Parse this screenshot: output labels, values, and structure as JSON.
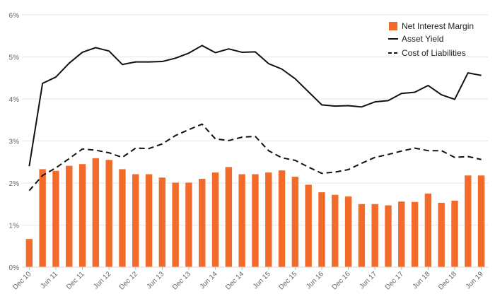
{
  "chart_data": {
    "type": "bar",
    "title": "",
    "xlabel": "",
    "ylabel": "",
    "ylim": [
      0,
      6
    ],
    "y_tick_labels": [
      "0%",
      "1%",
      "2%",
      "3%",
      "4%",
      "5%",
      "6%"
    ],
    "grid": "horizontal",
    "legend_position": "top-right",
    "categories": [
      "Dec 10",
      "Mar 11",
      "Jun 11",
      "Sep 11",
      "Dec 11",
      "Mar 12",
      "Jun 12",
      "Sep 12",
      "Dec 12",
      "Mar 13",
      "Jun 13",
      "Sep 13",
      "Dec 13",
      "Mar 14",
      "Jun 14",
      "Sep 14",
      "Dec 14",
      "Mar 15",
      "Jun 15",
      "Sep 15",
      "Dec 15",
      "Mar 16",
      "Jun 16",
      "Sep 16",
      "Dec 16",
      "Mar 17",
      "Jun 17",
      "Sep 17",
      "Dec 17",
      "Mar 18",
      "Jun 18",
      "Sep 18",
      "Dec 18",
      "Mar 19",
      "Jun 19"
    ],
    "x_tick_labels": [
      "Dec 10",
      "Jun 11",
      "Dec 11",
      "Jun 12",
      "Dec 12",
      "Jun 13",
      "Dec 13",
      "Jun 14",
      "Dec 14",
      "Jun 15",
      "Dec 15",
      "Jun 16",
      "Dec 16",
      "Jun 17",
      "Dec 17",
      "Jun 18",
      "Dec 18",
      "Jun 19"
    ],
    "series": [
      {
        "name": "Net Interest Margin",
        "type": "bar",
        "color": "#f26b2a",
        "values": [
          0.67,
          2.33,
          2.29,
          2.41,
          2.45,
          2.59,
          2.55,
          2.33,
          2.21,
          2.21,
          2.13,
          2.01,
          2.01,
          2.1,
          2.25,
          2.38,
          2.21,
          2.21,
          2.25,
          2.3,
          2.15,
          1.96,
          1.78,
          1.72,
          1.68,
          1.5,
          1.5,
          1.47,
          1.56,
          1.55,
          1.75,
          1.53,
          1.58,
          2.18,
          2.18
        ]
      },
      {
        "name": "Asset Yield",
        "type": "line",
        "style": "solid",
        "color": "#111111",
        "values": [
          2.4,
          4.37,
          4.52,
          4.85,
          5.11,
          5.22,
          5.14,
          4.82,
          4.88,
          4.88,
          4.89,
          4.97,
          5.09,
          5.27,
          5.1,
          5.19,
          5.11,
          5.12,
          4.84,
          4.71,
          4.48,
          4.17,
          3.86,
          3.83,
          3.84,
          3.81,
          3.93,
          3.96,
          4.13,
          4.16,
          4.32,
          4.1,
          3.99,
          4.62,
          4.56
        ]
      },
      {
        "name": "Cost of Liabilities",
        "type": "line",
        "style": "dashed",
        "color": "#111111",
        "values": [
          1.82,
          2.18,
          2.36,
          2.58,
          2.81,
          2.78,
          2.72,
          2.61,
          2.83,
          2.82,
          2.93,
          3.13,
          3.27,
          3.4,
          3.05,
          3.01,
          3.09,
          3.11,
          2.77,
          2.6,
          2.54,
          2.38,
          2.23,
          2.26,
          2.32,
          2.47,
          2.61,
          2.68,
          2.76,
          2.83,
          2.77,
          2.77,
          2.61,
          2.63,
          2.56
        ]
      }
    ]
  }
}
